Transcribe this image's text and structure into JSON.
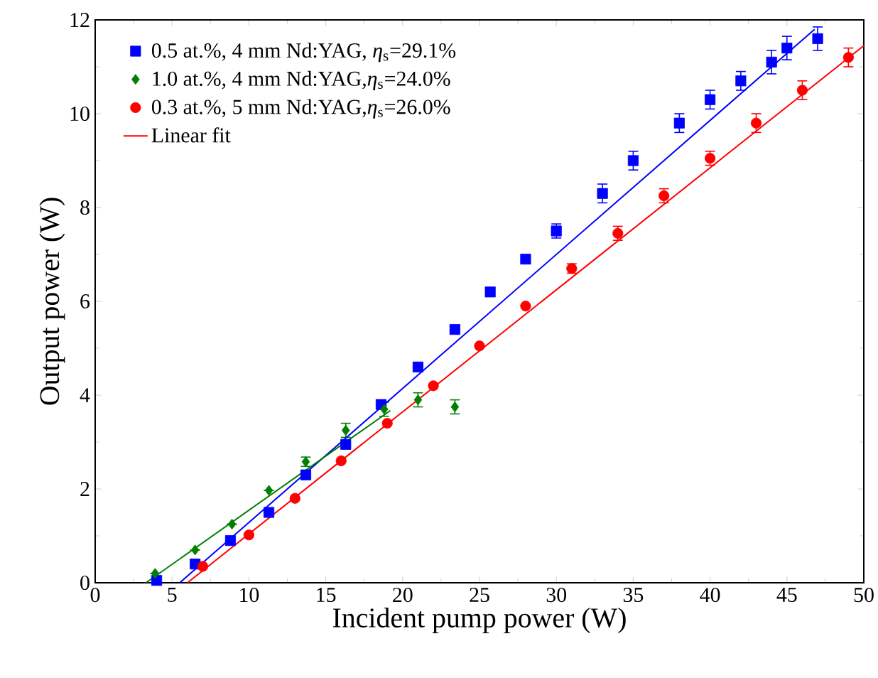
{
  "chart_data": {
    "type": "scatter",
    "xlabel": "Incident pump power (W)",
    "ylabel": "Output power (W)",
    "xlim": [
      0,
      50
    ],
    "ylim": [
      0,
      12
    ],
    "xticks": [
      0,
      5,
      10,
      15,
      20,
      25,
      30,
      35,
      40,
      45,
      50
    ],
    "yticks": [
      0,
      2,
      4,
      6,
      8,
      10,
      12
    ],
    "grid": false,
    "legend": "top left",
    "series": [
      {
        "name": "0.5 at.%, 4 mm Nd:YAG, *η*$_{s}$=29.1%",
        "color": "#0000ff",
        "marker": "square",
        "x": [
          4,
          6.5,
          8.8,
          11.3,
          13.7,
          16.3,
          18.6,
          21,
          23.4,
          25.7,
          28,
          30,
          33,
          35,
          38,
          40,
          42,
          44,
          45,
          47
        ],
        "values": [
          0.05,
          0.4,
          0.9,
          1.5,
          2.3,
          2.95,
          3.8,
          4.6,
          5.4,
          6.2,
          6.9,
          7.5,
          8.3,
          9.0,
          9.8,
          10.3,
          10.7,
          11.1,
          11.4,
          11.6
        ],
        "errors": [
          null,
          null,
          null,
          null,
          null,
          null,
          null,
          null,
          null,
          null,
          null,
          0.15,
          0.2,
          0.2,
          0.2,
          0.2,
          0.2,
          0.25,
          0.25,
          0.25
        ]
      },
      {
        "name": "1.0 at.%, 4 mm Nd:YAG,*η*$_{s}$=24.0%",
        "color": "#007f00",
        "marker": "diamond",
        "x": [
          3.9,
          6.5,
          8.9,
          11.3,
          13.7,
          16.3,
          18.8,
          21,
          23.4
        ],
        "values": [
          0.2,
          0.7,
          1.25,
          1.97,
          2.58,
          3.25,
          3.7,
          3.9,
          3.75
        ],
        "errors": [
          null,
          null,
          null,
          null,
          0.1,
          0.15,
          0.15,
          0.15,
          0.15
        ]
      },
      {
        "name": "0.3 at.%, 5 mm Nd:YAG,*η*$_{s}$=26.0%",
        "color": "#ff0000",
        "marker": "circle",
        "x": [
          7,
          10,
          13,
          16,
          19,
          22,
          25,
          28,
          31,
          34,
          37,
          40,
          43,
          46,
          49
        ],
        "values": [
          0.35,
          1.02,
          1.8,
          2.6,
          3.4,
          4.2,
          5.05,
          5.9,
          6.7,
          7.45,
          8.25,
          9.05,
          9.8,
          10.5,
          11.2
        ],
        "errors": [
          null,
          null,
          null,
          null,
          null,
          null,
          null,
          null,
          0.1,
          0.15,
          0.15,
          0.15,
          0.2,
          0.2,
          0.2
        ]
      },
      {
        "type": "line",
        "color": "#0000ff",
        "x": [
          5.5,
          46.8
        ],
        "values": [
          0,
          11.8
        ]
      },
      {
        "type": "line",
        "color": "#007f00",
        "x": [
          3.3,
          19.2
        ],
        "values": [
          0,
          3.67
        ]
      },
      {
        "type": "line",
        "name": "Linear fit",
        "color": "#ff0000",
        "x": [
          6.0,
          50
        ],
        "values": [
          0,
          11.45
        ]
      }
    ]
  }
}
